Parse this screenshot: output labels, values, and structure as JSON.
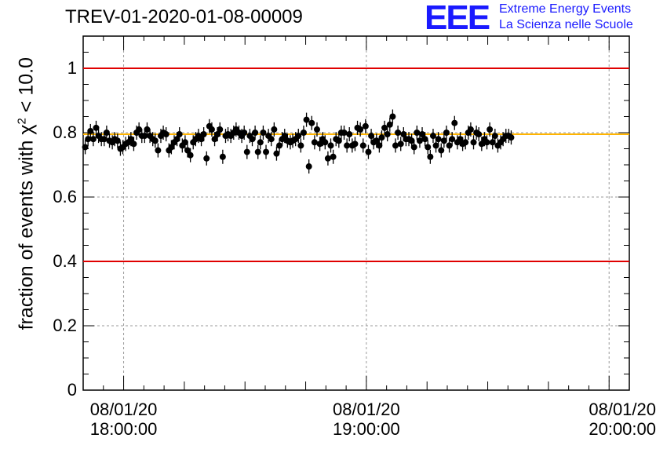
{
  "title": "TREV-01-2020-01-08-00009",
  "logo": {
    "mark": "EEE",
    "line1": "Extreme Energy Events",
    "line2": "La Scienza nelle Scuole"
  },
  "chart_data": {
    "type": "scatter",
    "title": "TREV-01-2020-01-08-00009",
    "xlabel": "",
    "ylabel_text": "fraction of events with χ",
    "ylabel_sup": "2",
    "ylabel_tail": " < 10.0",
    "ylim": [
      0,
      1.1
    ],
    "xlim_minutes": [
      -10,
      125
    ],
    "grid": true,
    "yticks": [
      "0",
      "0.2",
      "0.4",
      "0.6",
      "0.8",
      "1"
    ],
    "ytick_values": [
      0,
      0.2,
      0.4,
      0.6,
      0.8,
      1.0
    ],
    "xticks": [
      {
        "minute": 0,
        "date": "08/01/20",
        "time": "18:00:00"
      },
      {
        "minute": 60,
        "date": "08/01/20",
        "time": "19:00:00"
      },
      {
        "minute": 120,
        "date": "08/01/20",
        "time": "20:00:00"
      }
    ],
    "hlines": [
      {
        "y": 1.0,
        "color": "#e00000"
      },
      {
        "y": 0.4,
        "color": "#e00000"
      },
      {
        "y": 0.795,
        "color": "#ffb400"
      }
    ],
    "points": [
      [
        -9.5,
        0.755
      ],
      [
        -8.8,
        0.78
      ],
      [
        -8.2,
        0.805
      ],
      [
        -7.5,
        0.78
      ],
      [
        -6.8,
        0.815
      ],
      [
        -6.2,
        0.79
      ],
      [
        -5.5,
        0.78
      ],
      [
        -4.8,
        0.78
      ],
      [
        -4.2,
        0.8
      ],
      [
        -3.5,
        0.775
      ],
      [
        -2.8,
        0.77
      ],
      [
        -2.2,
        0.78
      ],
      [
        -1.5,
        0.775
      ],
      [
        -0.8,
        0.75
      ],
      [
        -0.2,
        0.755
      ],
      [
        0.5,
        0.765
      ],
      [
        1.2,
        0.77
      ],
      [
        1.8,
        0.78
      ],
      [
        2.5,
        0.765
      ],
      [
        3.2,
        0.8
      ],
      [
        3.8,
        0.81
      ],
      [
        4.5,
        0.79
      ],
      [
        5.2,
        0.79
      ],
      [
        5.8,
        0.81
      ],
      [
        6.5,
        0.79
      ],
      [
        7.2,
        0.78
      ],
      [
        7.8,
        0.775
      ],
      [
        8.5,
        0.745
      ],
      [
        9.2,
        0.79
      ],
      [
        9.8,
        0.8
      ],
      [
        10.5,
        0.795
      ],
      [
        11.2,
        0.745
      ],
      [
        11.8,
        0.755
      ],
      [
        12.5,
        0.77
      ],
      [
        13.2,
        0.78
      ],
      [
        13.8,
        0.795
      ],
      [
        14.5,
        0.76
      ],
      [
        15.2,
        0.77
      ],
      [
        15.8,
        0.745
      ],
      [
        16.5,
        0.73
      ],
      [
        17.2,
        0.77
      ],
      [
        17.8,
        0.78
      ],
      [
        18.5,
        0.79
      ],
      [
        19.2,
        0.78
      ],
      [
        19.8,
        0.795
      ],
      [
        20.5,
        0.72
      ],
      [
        21.2,
        0.82
      ],
      [
        21.8,
        0.81
      ],
      [
        22.5,
        0.78
      ],
      [
        23.2,
        0.795
      ],
      [
        23.8,
        0.81
      ],
      [
        24.5,
        0.725
      ],
      [
        25.2,
        0.79
      ],
      [
        25.8,
        0.795
      ],
      [
        26.5,
        0.79
      ],
      [
        27.2,
        0.8
      ],
      [
        27.8,
        0.81
      ],
      [
        28.5,
        0.8
      ],
      [
        29.2,
        0.79
      ],
      [
        29.8,
        0.8
      ],
      [
        30.5,
        0.74
      ],
      [
        31.2,
        0.79
      ],
      [
        31.8,
        0.78
      ],
      [
        32.5,
        0.8
      ],
      [
        33.2,
        0.74
      ],
      [
        33.8,
        0.77
      ],
      [
        34.5,
        0.8
      ],
      [
        35.2,
        0.74
      ],
      [
        35.8,
        0.79
      ],
      [
        36.5,
        0.78
      ],
      [
        37.2,
        0.81
      ],
      [
        37.8,
        0.735
      ],
      [
        38.5,
        0.76
      ],
      [
        39.2,
        0.78
      ],
      [
        39.8,
        0.79
      ],
      [
        40.5,
        0.775
      ],
      [
        41.2,
        0.77
      ],
      [
        41.8,
        0.775
      ],
      [
        42.5,
        0.78
      ],
      [
        43.2,
        0.79
      ],
      [
        43.8,
        0.76
      ],
      [
        44.5,
        0.8
      ],
      [
        45.2,
        0.84
      ],
      [
        45.8,
        0.695
      ],
      [
        46.5,
        0.83
      ],
      [
        47.2,
        0.77
      ],
      [
        47.8,
        0.81
      ],
      [
        48.5,
        0.765
      ],
      [
        49.2,
        0.78
      ],
      [
        49.8,
        0.77
      ],
      [
        50.5,
        0.72
      ],
      [
        51.2,
        0.76
      ],
      [
        51.8,
        0.725
      ],
      [
        52.5,
        0.78
      ],
      [
        53.2,
        0.775
      ],
      [
        53.8,
        0.8
      ],
      [
        54.5,
        0.8
      ],
      [
        55.2,
        0.76
      ],
      [
        55.8,
        0.795
      ],
      [
        56.5,
        0.76
      ],
      [
        57.2,
        0.765
      ],
      [
        57.8,
        0.815
      ],
      [
        58.5,
        0.81
      ],
      [
        59.2,
        0.76
      ],
      [
        59.8,
        0.82
      ],
      [
        60.5,
        0.74
      ],
      [
        61.2,
        0.79
      ],
      [
        61.8,
        0.77
      ],
      [
        62.5,
        0.775
      ],
      [
        63.2,
        0.76
      ],
      [
        63.8,
        0.785
      ],
      [
        64.5,
        0.815
      ],
      [
        65.2,
        0.795
      ],
      [
        65.8,
        0.825
      ],
      [
        66.5,
        0.85
      ],
      [
        67.2,
        0.76
      ],
      [
        67.8,
        0.8
      ],
      [
        68.5,
        0.765
      ],
      [
        69.2,
        0.795
      ],
      [
        69.8,
        0.78
      ],
      [
        70.5,
        0.78
      ],
      [
        71.2,
        0.775
      ],
      [
        71.8,
        0.755
      ],
      [
        72.5,
        0.8
      ],
      [
        73.2,
        0.775
      ],
      [
        73.8,
        0.795
      ],
      [
        74.5,
        0.78
      ],
      [
        75.2,
        0.755
      ],
      [
        75.8,
        0.725
      ],
      [
        76.5,
        0.79
      ],
      [
        77.2,
        0.76
      ],
      [
        77.8,
        0.78
      ],
      [
        78.5,
        0.745
      ],
      [
        79.2,
        0.775
      ],
      [
        79.8,
        0.8
      ],
      [
        80.5,
        0.76
      ],
      [
        81.2,
        0.78
      ],
      [
        81.8,
        0.83
      ],
      [
        82.5,
        0.77
      ],
      [
        83.2,
        0.78
      ],
      [
        83.8,
        0.765
      ],
      [
        84.5,
        0.77
      ],
      [
        85.2,
        0.8
      ],
      [
        85.8,
        0.81
      ],
      [
        86.5,
        0.77
      ],
      [
        87.2,
        0.8
      ],
      [
        87.8,
        0.795
      ],
      [
        88.5,
        0.765
      ],
      [
        89.2,
        0.78
      ],
      [
        89.8,
        0.77
      ],
      [
        90.5,
        0.81
      ],
      [
        91.2,
        0.77
      ],
      [
        91.8,
        0.79
      ],
      [
        92.5,
        0.76
      ],
      [
        93.2,
        0.77
      ],
      [
        93.8,
        0.78
      ],
      [
        94.5,
        0.79
      ],
      [
        95.2,
        0.79
      ],
      [
        95.8,
        0.785
      ]
    ],
    "error": 0.022
  }
}
